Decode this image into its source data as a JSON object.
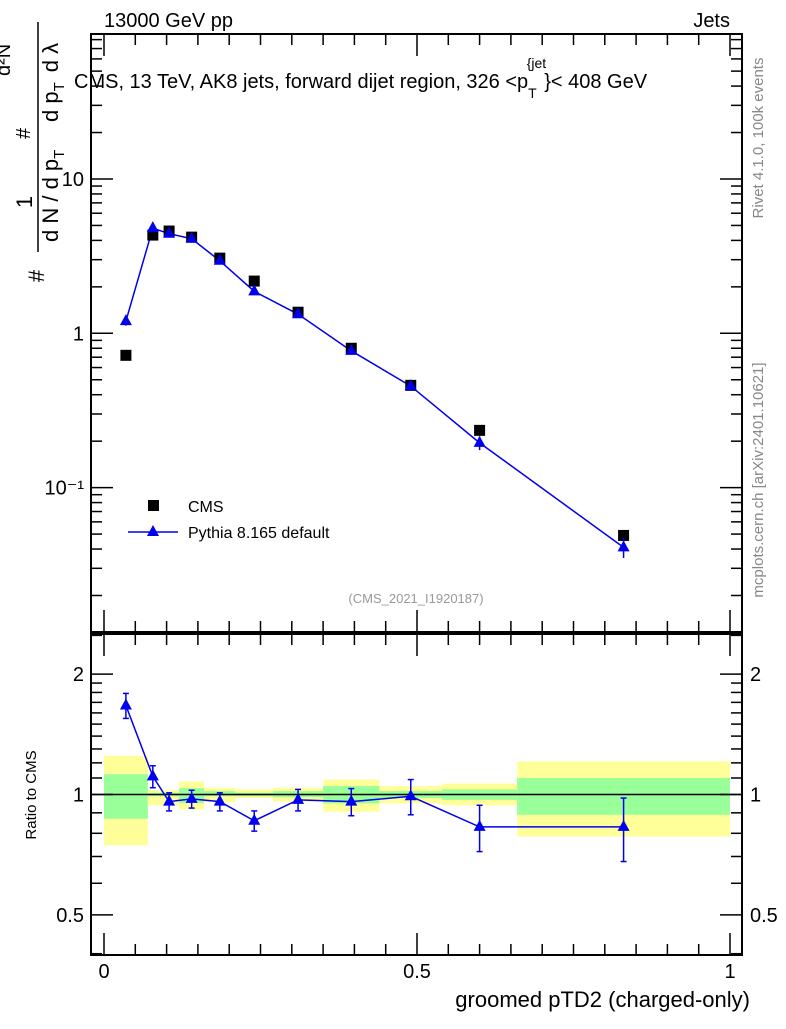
{
  "header": {
    "left": "13000 GeV pp",
    "right": "Jets"
  },
  "colors": {
    "data": "#000000",
    "mc": "#0000ee",
    "band_inner": "#99ff99",
    "band_outer": "#ffff99",
    "side_text": "#888888"
  },
  "side_text": {
    "rivet": "Rivet 4.1.0,  100k events",
    "mcplots": "mcplots.cern.ch [arXiv:2401.10621]"
  },
  "chart_data": [
    {
      "type": "scatter",
      "title": "CMS, 13 TeV, AK8 jets, forward dijet region, 326 <p_T^{jet}> < 408 GeV",
      "title_parts": {
        "main": "CMS, 13 TeV, AK8 jets, forward dijet region, 326 <p",
        "sup": "{jet",
        "sub": "T",
        "tail": "}< 408 GeV"
      },
      "ylabel": "1/N dN/dp_T d²N/dp_T dλ",
      "ylabel_parts": {
        "a": "#",
        "b": "1",
        "c": "d N / d p",
        "d": "T",
        "e": "#",
        "f": "d²N",
        "g": "d p",
        "h": "T",
        "i": "d λ"
      },
      "yscale": "log",
      "xlim": [
        0,
        1
      ],
      "ylim": [
        0.0116,
        87
      ],
      "yticks": [
        {
          "v": 10,
          "label": "10"
        },
        {
          "v": 1,
          "label": "1"
        },
        {
          "v": 0.1,
          "label": "10⁻¹"
        }
      ],
      "watermark": "(CMS_2021_I1920187)",
      "legend": {
        "placement": "lower-left",
        "entries": [
          "CMS",
          "Pythia 8.165 default"
        ]
      },
      "x": [
        0.035,
        0.078,
        0.104,
        0.14,
        0.185,
        0.24,
        0.31,
        0.395,
        0.49,
        0.6,
        0.83
      ],
      "bin_edges": [
        0,
        0.07,
        0.087,
        0.12,
        0.16,
        0.21,
        0.27,
        0.35,
        0.44,
        0.54,
        0.66,
        1.0
      ],
      "series": [
        {
          "name": "CMS",
          "values": [
            0.72,
            4.33,
            4.6,
            4.2,
            3.07,
            2.18,
            1.37,
            0.8,
            0.46,
            0.235,
            0.049
          ]
        },
        {
          "name": "Pythia 8.165 default",
          "values": [
            1.2,
            4.8,
            4.42,
            4.1,
            2.95,
            1.87,
            1.33,
            0.77,
            0.455,
            0.195,
            0.041
          ],
          "errors": [
            0.08,
            0.2,
            0.15,
            0.15,
            0.1,
            0.07,
            0.05,
            0.03,
            0.03,
            0.02,
            0.006
          ]
        }
      ]
    },
    {
      "type": "scatter",
      "ylabel": "Ratio to CMS",
      "xlabel": "groomed pTD2 (charged-only)",
      "yscale": "log",
      "xlim": [
        0,
        1
      ],
      "ylim": [
        0.397,
        2.52
      ],
      "yticks": [
        {
          "v": 2,
          "label": "2"
        },
        {
          "v": 1,
          "label": "1"
        },
        {
          "v": 0.5,
          "label": "0.5"
        }
      ],
      "xticks": [
        {
          "v": 0,
          "label": "0"
        },
        {
          "v": 0.5,
          "label": "0.5"
        },
        {
          "v": 1,
          "label": "1"
        }
      ],
      "x": [
        0.035,
        0.078,
        0.104,
        0.14,
        0.185,
        0.24,
        0.31,
        0.395,
        0.49,
        0.6,
        0.83
      ],
      "ratio": [
        1.67,
        1.11,
        0.96,
        0.975,
        0.96,
        0.86,
        0.97,
        0.96,
        0.99,
        0.83,
        0.83
      ],
      "ratio_errors": [
        0.12,
        0.07,
        0.05,
        0.05,
        0.05,
        0.05,
        0.06,
        0.075,
        0.1,
        0.11,
        0.15
      ],
      "bands": [
        {
          "lo": 0,
          "hi": 0.07,
          "outer": [
            0.746,
            1.25
          ],
          "inner": [
            0.87,
            1.124
          ]
        },
        {
          "lo": 0.07,
          "hi": 0.087,
          "outer": [
            0.94,
            1.025
          ],
          "inner": [
            0.99,
            1.01
          ]
        },
        {
          "lo": 0.087,
          "hi": 0.12,
          "outer": [
            0.94,
            1.025
          ],
          "inner": [
            0.99,
            1.01
          ]
        },
        {
          "lo": 0.12,
          "hi": 0.16,
          "outer": [
            0.917,
            1.078
          ],
          "inner": [
            0.953,
            1.037
          ]
        },
        {
          "lo": 0.16,
          "hi": 0.21,
          "outer": [
            0.957,
            1.04
          ],
          "inner": [
            0.99,
            1.02
          ]
        },
        {
          "lo": 0.21,
          "hi": 0.27,
          "outer": [
            0.98,
            1.03
          ],
          "inner": [
            0.99,
            1.01
          ]
        },
        {
          "lo": 0.27,
          "hi": 0.35,
          "outer": [
            0.96,
            1.04
          ],
          "inner": [
            0.985,
            1.02
          ]
        },
        {
          "lo": 0.35,
          "hi": 0.44,
          "outer": [
            0.906,
            1.09
          ],
          "inner": [
            0.95,
            1.05
          ]
        },
        {
          "lo": 0.44,
          "hi": 0.54,
          "outer": [
            0.95,
            1.05
          ],
          "inner": [
            0.98,
            1.02
          ]
        },
        {
          "lo": 0.54,
          "hi": 0.66,
          "outer": [
            0.94,
            1.065
          ],
          "inner": [
            0.97,
            1.03
          ]
        },
        {
          "lo": 0.66,
          "hi": 1.0,
          "outer": [
            0.785,
            1.21
          ],
          "inner": [
            0.89,
            1.1
          ]
        }
      ]
    }
  ]
}
